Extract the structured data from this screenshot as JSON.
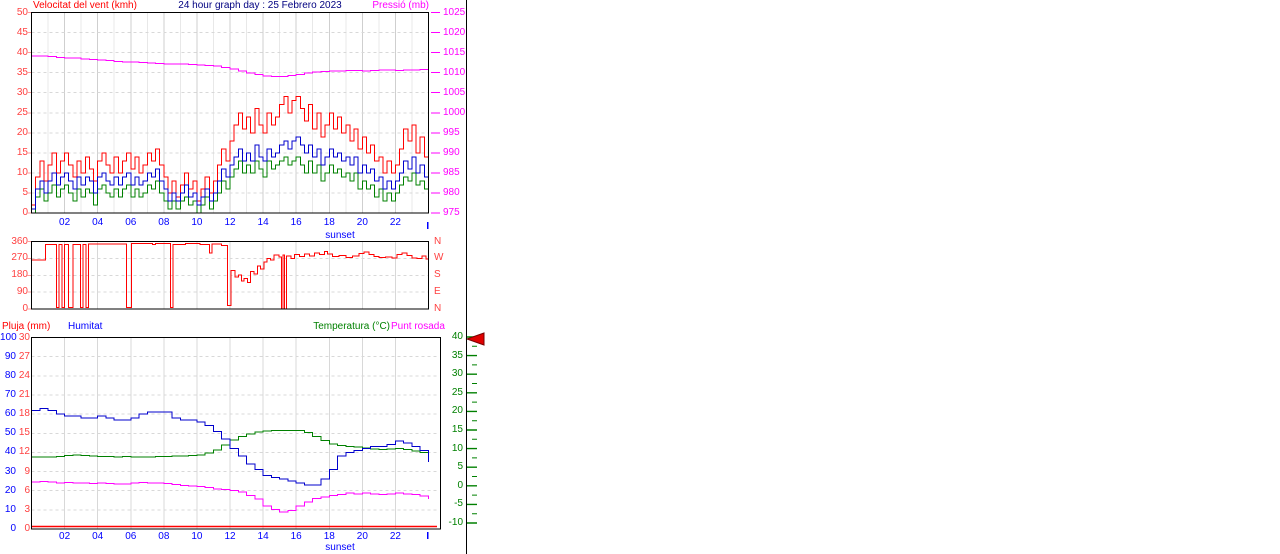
{
  "header": {
    "wind_label": "Velocitat del vent (kmh)",
    "title": "24 hour graph day : 25 Febrero 2023",
    "pressure_label": "Pressió (mb)"
  },
  "bottom_header": {
    "rain_label": "Pluja (mm)",
    "humidity_label": "Humitat",
    "temperature_label": "Temperatura (°C)",
    "dewpoint_label": "Punt rosada"
  },
  "axes": {
    "wind_speed": [
      "50",
      "45",
      "40",
      "35",
      "30",
      "25",
      "20",
      "15",
      "10",
      "5",
      "0"
    ],
    "pressure": [
      "1025",
      "1020",
      "1015",
      "1010",
      "1005",
      "1000",
      "995",
      "990",
      "985",
      "980",
      "975"
    ],
    "direction_deg": [
      "360",
      "270",
      "180",
      "90",
      "0"
    ],
    "direction_compass": [
      "N",
      "W",
      "S",
      "E",
      "N"
    ],
    "humidity": [
      "100",
      "90",
      "80",
      "70",
      "60",
      "50",
      "40",
      "30",
      "20",
      "10",
      "0"
    ],
    "rain": [
      "30",
      "27",
      "24",
      "21",
      "18",
      "15",
      "12",
      "9",
      "6",
      "3",
      "0"
    ],
    "temperature": [
      "40",
      "35",
      "30",
      "25",
      "20",
      "15",
      "10",
      "5",
      "0",
      "-5",
      "-10"
    ],
    "hours": [
      "02",
      "04",
      "06",
      "08",
      "10",
      "12",
      "14",
      "16",
      "18",
      "20",
      "22"
    ],
    "sunset_label": "sunset"
  },
  "colors": {
    "wind_gust": "#ff0000",
    "wind_speed": "#0000cc",
    "wind_average": "#008000",
    "pressure": "#ff00ff",
    "direction": "#ff0000",
    "rain": "#ff0000",
    "humidity": "#0000cc",
    "temperature": "#008000",
    "dewpoint": "#ff00ff",
    "title": "#000080",
    "hour_labels": "#0000ff",
    "pointer": "#e00000"
  },
  "chart_data": [
    {
      "type": "line",
      "title": "24 hour graph day : 25 Febrero 2023",
      "ylabel_left": "Velocitat del vent (kmh)",
      "ylabel_right": "Pressió (mb)",
      "xlim": [
        0,
        24
      ],
      "ylim_left": [
        0,
        50
      ],
      "ylim_right": [
        975,
        1025
      ],
      "grid": true,
      "series": [
        {
          "name": "wind-gust-kmh",
          "color": "#ff0000",
          "axis": "left",
          "step_hours": 0.25,
          "values": [
            2,
            9,
            13,
            8,
            12,
            15,
            10,
            13,
            15,
            12,
            9,
            13,
            10,
            14,
            11,
            8,
            13,
            15,
            12,
            10,
            14,
            10,
            13,
            15,
            11,
            14,
            10,
            12,
            15,
            13,
            16,
            12,
            9,
            5,
            8,
            4,
            7,
            10,
            6,
            8,
            3,
            6,
            9,
            5,
            8,
            12,
            16,
            13,
            18,
            22,
            25,
            21,
            24,
            20,
            26,
            22,
            20,
            25,
            22,
            24,
            27,
            29,
            25,
            28,
            29,
            26,
            23,
            27,
            21,
            25,
            19,
            22,
            25,
            21,
            24,
            20,
            22,
            18,
            21,
            16,
            19,
            15,
            17,
            13,
            14,
            10,
            13,
            10,
            12,
            16,
            21,
            18,
            22,
            15,
            19,
            14,
            23
          ]
        },
        {
          "name": "wind-average-kmh",
          "color": "#008000",
          "axis": "left",
          "step_hours": 0.25,
          "values": [
            0,
            4,
            6,
            3,
            5,
            7,
            4,
            6,
            7,
            5,
            3,
            6,
            4,
            6,
            5,
            2,
            6,
            7,
            5,
            4,
            6,
            4,
            6,
            7,
            4,
            6,
            4,
            5,
            7,
            6,
            8,
            5,
            3,
            1,
            3,
            1,
            3,
            4,
            2,
            3,
            0,
            2,
            4,
            1,
            3,
            5,
            8,
            6,
            9,
            11,
            13,
            10,
            12,
            10,
            13,
            11,
            9,
            13,
            11,
            12,
            13,
            14,
            12,
            13,
            14,
            12,
            10,
            13,
            10,
            12,
            8,
            10,
            12,
            10,
            11,
            9,
            10,
            8,
            10,
            6,
            8,
            6,
            7,
            4,
            6,
            3,
            5,
            3,
            5,
            7,
            9,
            8,
            10,
            7,
            8,
            6,
            10
          ]
        },
        {
          "name": "wind-speed-kmh",
          "color": "#0000cc",
          "axis": "left",
          "step_hours": 0.25,
          "values": [
            1,
            6,
            8,
            5,
            8,
            10,
            7,
            9,
            10,
            8,
            6,
            9,
            7,
            9,
            8,
            5,
            9,
            10,
            8,
            7,
            9,
            7,
            9,
            10,
            7,
            9,
            7,
            8,
            10,
            9,
            11,
            8,
            6,
            3,
            5,
            3,
            5,
            7,
            4,
            5,
            2,
            4,
            6,
            3,
            5,
            8,
            11,
            9,
            12,
            14,
            16,
            13,
            15,
            13,
            17,
            14,
            13,
            16,
            14,
            15,
            17,
            18,
            16,
            18,
            19,
            17,
            15,
            17,
            14,
            16,
            12,
            14,
            16,
            14,
            15,
            13,
            14,
            12,
            14,
            10,
            12,
            10,
            11,
            8,
            9,
            6,
            8,
            6,
            8,
            10,
            13,
            11,
            14,
            10,
            12,
            9,
            14
          ]
        },
        {
          "name": "pressure-mb",
          "color": "#ff00ff",
          "axis": "right",
          "step_hours": 0.5,
          "values": [
            1014.2,
            1014.1,
            1014.0,
            1013.8,
            1013.7,
            1013.6,
            1013.4,
            1013.3,
            1013.2,
            1013.0,
            1012.8,
            1012.7,
            1012.6,
            1012.5,
            1012.4,
            1012.3,
            1012.2,
            1012.2,
            1012.1,
            1012.0,
            1011.9,
            1011.8,
            1011.6,
            1011.3,
            1010.9,
            1010.4,
            1009.9,
            1009.5,
            1009.2,
            1009.0,
            1009.1,
            1009.3,
            1009.6,
            1009.9,
            1010.1,
            1010.3,
            1010.4,
            1010.4,
            1010.5,
            1010.5,
            1010.4,
            1010.5,
            1010.6,
            1010.6,
            1010.5,
            1010.6,
            1010.7,
            1010.8,
            1010.9
          ]
        }
      ]
    },
    {
      "type": "line",
      "name": "wind-direction",
      "xlim": [
        0,
        24
      ],
      "ylim": [
        0,
        360
      ],
      "compass": [
        "N",
        "W",
        "S",
        "E",
        "N"
      ],
      "series": [
        {
          "name": "direction-degrees",
          "color": "#ff0000",
          "points": [
            [
              0,
              262
            ],
            [
              0.85,
              345
            ],
            [
              1.5,
              8
            ],
            [
              1.65,
              345
            ],
            [
              1.85,
              8
            ],
            [
              2.0,
              345
            ],
            [
              2.25,
              8
            ],
            [
              2.5,
              345
            ],
            [
              2.95,
              8
            ],
            [
              3.1,
              345
            ],
            [
              3.3,
              8
            ],
            [
              3.45,
              348
            ],
            [
              5.75,
              8
            ],
            [
              6.05,
              350
            ],
            [
              7.3,
              344
            ],
            [
              7.5,
              350
            ],
            [
              8.4,
              8
            ],
            [
              8.55,
              345
            ],
            [
              9.3,
              350
            ],
            [
              10.2,
              344
            ],
            [
              10.75,
              300
            ],
            [
              10.9,
              346
            ],
            [
              11.5,
              340
            ],
            [
              11.85,
              20
            ],
            [
              12.05,
              205
            ],
            [
              12.3,
              170
            ],
            [
              12.5,
              182
            ],
            [
              12.7,
              150
            ],
            [
              12.85,
              162
            ],
            [
              13.05,
              142
            ],
            [
              13.25,
              200
            ],
            [
              13.45,
              186
            ],
            [
              13.65,
              230
            ],
            [
              13.85,
              214
            ],
            [
              14.05,
              252
            ],
            [
              14.25,
              270
            ],
            [
              14.45,
              262
            ],
            [
              14.65,
              288
            ],
            [
              14.95,
              278
            ],
            [
              15.1,
              0
            ],
            [
              15.2,
              288
            ],
            [
              15.28,
              0
            ],
            [
              15.42,
              284
            ],
            [
              15.7,
              270
            ],
            [
              15.9,
              290
            ],
            [
              16.2,
              280
            ],
            [
              16.5,
              294
            ],
            [
              16.8,
              284
            ],
            [
              17.1,
              300
            ],
            [
              17.4,
              290
            ],
            [
              17.7,
              308
            ],
            [
              17.9,
              294
            ],
            [
              18.2,
              280
            ],
            [
              18.6,
              286
            ],
            [
              19.0,
              276
            ],
            [
              19.4,
              282
            ],
            [
              19.8,
              296
            ],
            [
              20.1,
              304
            ],
            [
              20.4,
              290
            ],
            [
              20.7,
              280
            ],
            [
              21.0,
              274
            ],
            [
              21.4,
              278
            ],
            [
              21.8,
              272
            ],
            [
              22.1,
              290
            ],
            [
              22.4,
              298
            ],
            [
              22.7,
              286
            ],
            [
              23.0,
              272
            ],
            [
              23.3,
              270
            ],
            [
              23.6,
              282
            ],
            [
              23.85,
              268
            ],
            [
              24,
              290
            ]
          ]
        }
      ]
    },
    {
      "type": "line",
      "labels": {
        "rain": "Pluja (mm)",
        "humidity": "Humitat",
        "temperature": "Temperatura (°C)",
        "dewpoint": "Punt rosada"
      },
      "xlim": [
        0,
        24
      ],
      "ylim_humidity": [
        0,
        100
      ],
      "ylim_rain": [
        0,
        30
      ],
      "ylim_temperature": [
        -10,
        40
      ],
      "series": [
        {
          "name": "rain-mm",
          "color": "#ff0000",
          "scale": "rain",
          "step_hours": 12,
          "values": [
            0,
            0,
            0
          ]
        },
        {
          "name": "dewpoint-c",
          "color": "#ff00ff",
          "scale": "temperature",
          "step_hours": 0.5,
          "values": [
            1.0,
            1.2,
            1.0,
            0.8,
            0.9,
            0.8,
            0.7,
            0.6,
            0.8,
            0.6,
            0.5,
            0.5,
            0.7,
            0.9,
            0.8,
            0.7,
            0.6,
            0.3,
            0.1,
            0.0,
            -0.2,
            -0.5,
            -0.8,
            -1.0,
            -1.2,
            -1.6,
            -2.6,
            -3.6,
            -5.4,
            -6.4,
            -7.0,
            -6.6,
            -5.4,
            -4.4,
            -3.4,
            -3.0,
            -2.6,
            -2.3,
            -2.0,
            -2.2,
            -2.0,
            -2.2,
            -2.4,
            -2.2,
            -2.0,
            -2.2,
            -2.4,
            -2.7,
            -3.6
          ]
        },
        {
          "name": "temperature-c",
          "color": "#008000",
          "scale": "temperature",
          "step_hours": 0.5,
          "values": [
            7.7,
            7.7,
            7.8,
            7.9,
            8.2,
            8.3,
            8.2,
            8.0,
            7.9,
            7.9,
            7.8,
            7.9,
            7.8,
            7.7,
            7.8,
            7.9,
            7.9,
            8.0,
            8.0,
            8.1,
            8.3,
            8.8,
            9.6,
            11.0,
            12.3,
            13.2,
            13.9,
            14.4,
            14.7,
            14.9,
            14.9,
            14.9,
            14.8,
            14.3,
            13.3,
            12.2,
            11.2,
            10.8,
            10.6,
            10.4,
            10.1,
            9.9,
            9.8,
            9.9,
            10.0,
            9.7,
            9.3,
            9.0,
            8.8
          ]
        },
        {
          "name": "humidity-pct",
          "color": "#0000cc",
          "scale": "humidity",
          "step_hours": 0.5,
          "values": [
            62,
            63,
            62,
            60,
            59,
            59,
            58,
            58,
            59,
            58,
            57,
            57,
            58,
            60,
            61,
            61,
            61,
            58,
            57,
            57,
            56,
            54,
            51,
            47,
            42,
            38,
            34,
            31,
            28,
            27,
            26,
            25,
            24,
            23,
            23,
            26,
            31,
            38,
            40,
            41,
            42,
            43,
            43,
            44,
            46,
            45,
            43,
            41,
            35
          ]
        }
      ]
    }
  ]
}
